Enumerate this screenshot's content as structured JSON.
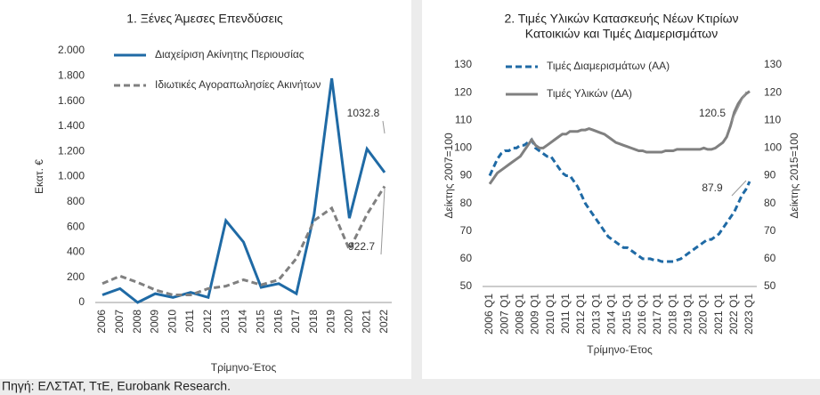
{
  "chart_data": [
    {
      "type": "line",
      "title": "1. Ξένες Άμεσες Επενδύσεις",
      "ylabel": "Εκατ. €",
      "xlabel": "Τρίμηνο-Έτος",
      "categories": [
        "2006",
        "2007",
        "2008",
        "2009",
        "2010",
        "2011",
        "2012",
        "2013",
        "2014",
        "2015",
        "2016",
        "2017",
        "2018",
        "2019",
        "2020",
        "2021",
        "2022"
      ],
      "series": [
        {
          "name": "Διαχείριση Ακίνητης Περιουσίας",
          "color": "#1f6aa5",
          "dashed": false,
          "values": [
            60,
            110,
            0,
            70,
            40,
            80,
            40,
            650,
            480,
            120,
            150,
            70,
            700,
            1780,
            670,
            1220,
            1032.8
          ]
        },
        {
          "name": "Ιδιωτικές Αγοραπωλησίες Ακινήτων",
          "color": "#808080",
          "dashed": true,
          "values": [
            150,
            210,
            160,
            100,
            60,
            60,
            110,
            130,
            180,
            140,
            180,
            350,
            650,
            750,
            420,
            700,
            922.7
          ]
        }
      ],
      "ylim": [
        0,
        2000
      ],
      "yticks": [
        0,
        200,
        400,
        600,
        800,
        {
          "value": 1000,
          "label": "1.000"
        },
        {
          "value": 1200,
          "label": "1.200"
        },
        {
          "value": 1400,
          "label": "1.400"
        },
        {
          "value": 1600,
          "label": "1.600"
        },
        {
          "value": 1800,
          "label": "1.800"
        },
        {
          "value": 2000,
          "label": "2.000"
        }
      ],
      "annotations": [
        "1032.8",
        "922.7"
      ],
      "grid": false
    },
    {
      "type": "line",
      "title": [
        "2. Τιμές Υλικών Κατασκευής Νέων Κτιρίων",
        "Κατοικιών και Τιμές Διαμερισμάτων"
      ],
      "ylabel": "Δείκτης 2007=100",
      "y2label": "Δείκτης 2015=100",
      "xlabel": "Τρίμηνο-Έτος",
      "categories": [
        "2006 Q1",
        null,
        null,
        null,
        "2007 Q1",
        null,
        null,
        null,
        "2008 Q1",
        null,
        null,
        null,
        "2009 Q1",
        null,
        null,
        null,
        "2010 Q1",
        null,
        null,
        null,
        "2011 Q1",
        null,
        null,
        null,
        "2012 Q1",
        null,
        null,
        null,
        "2013 Q1",
        null,
        null,
        null,
        "2014 Q1",
        null,
        null,
        null,
        "2015 Q1",
        null,
        null,
        null,
        "2016 Q1",
        null,
        null,
        null,
        "2017 Q1",
        null,
        null,
        null,
        "2018 Q1",
        null,
        null,
        null,
        "2019 Q1",
        null,
        null,
        null,
        "2020 Q1",
        null,
        null,
        null,
        "2021 Q1",
        null,
        null,
        null,
        "2022 Q1",
        null,
        null,
        null,
        "2023 Q1"
      ],
      "series": [
        {
          "name": "Τιμές Διαμερισμάτων (ΑΑ)",
          "color": "#1f6aa5",
          "dashed": true,
          "values": [
            90,
            93,
            96,
            98,
            99,
            99,
            100,
            100,
            101,
            101,
            102,
            103,
            100,
            99,
            98,
            97,
            97,
            95,
            93,
            91,
            90,
            90,
            88,
            86,
            83,
            80,
            78,
            76,
            74,
            72,
            70,
            68,
            67,
            66,
            65,
            64,
            64,
            63,
            62,
            61,
            60,
            60,
            60,
            59.5,
            59.5,
            59,
            59,
            59,
            59,
            59.5,
            60,
            61,
            62,
            63,
            64,
            65,
            66,
            67,
            67,
            68,
            69,
            71,
            73,
            75,
            77,
            80,
            83,
            85,
            87.9
          ]
        },
        {
          "name": "Τιμές Υλικών (ΔΑ)",
          "color": "#808080",
          "dashed": false,
          "axis": "y2",
          "values": [
            87,
            89,
            91,
            92,
            93,
            94,
            95,
            96,
            97,
            99,
            101,
            103,
            101,
            100,
            100,
            101,
            102,
            103,
            104,
            105,
            105,
            106,
            106,
            106,
            106.5,
            106.5,
            107,
            106.5,
            106,
            105.5,
            105,
            104,
            103,
            102,
            101.5,
            101,
            100.5,
            100,
            99.5,
            99,
            99,
            98.5,
            98.5,
            98.5,
            98.5,
            98.5,
            99,
            99,
            99,
            99.5,
            99.5,
            99.5,
            99.5,
            99.5,
            99.5,
            99.5,
            100,
            99.5,
            99.5,
            100,
            101,
            102,
            104,
            108,
            113,
            116,
            118,
            119.5,
            120.5
          ]
        }
      ],
      "ylim": [
        50,
        130
      ],
      "yticks": [
        50,
        60,
        70,
        80,
        90,
        100,
        110,
        120,
        130
      ],
      "y2lim": [
        50,
        130
      ],
      "y2ticks": [
        50,
        60,
        70,
        80,
        90,
        100,
        110,
        120,
        130
      ],
      "annotations": [
        "120.5",
        "87.9"
      ],
      "grid": false
    }
  ],
  "source": "Πηγή: ΕΛΣΤΑΤ, ΤτΕ, Eurobank Research."
}
